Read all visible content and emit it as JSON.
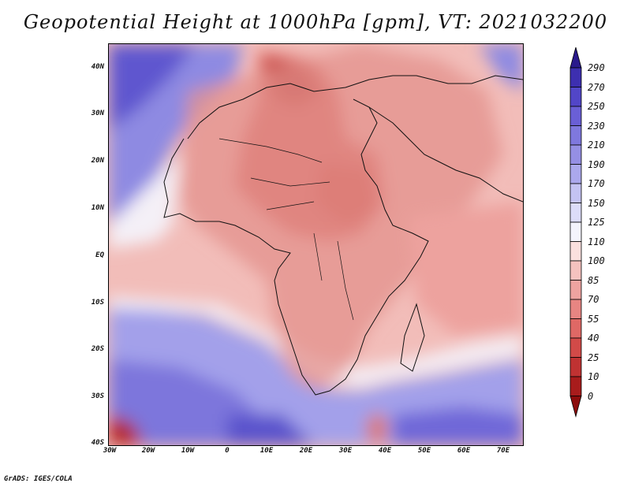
{
  "title": "Geopotential Height at 1000hPa [gpm], VT: 2021032200",
  "footer": "GrADS: IGES/COLA",
  "map": {
    "lat_labels": [
      "40N",
      "30N",
      "20N",
      "10N",
      "EQ",
      "10S",
      "20S",
      "30S",
      "40S"
    ],
    "lon_labels": [
      "30W",
      "20W",
      "10W",
      "0",
      "10E",
      "20E",
      "30E",
      "40E",
      "50E",
      "60E",
      "70E"
    ]
  },
  "colorbar": {
    "levels": [
      "290",
      "270",
      "250",
      "230",
      "210",
      "190",
      "170",
      "150",
      "125",
      "110",
      "100",
      "85",
      "70",
      "55",
      "40",
      "25",
      "10",
      "0"
    ],
    "colors": [
      "#2a1a8c",
      "#3d2fb0",
      "#5246c8",
      "#6a5fd6",
      "#7f78de",
      "#958fe4",
      "#aba8ec",
      "#c4c3f2",
      "#dcdcf8",
      "#f4f4fc",
      "#fae0de",
      "#f5c2bf",
      "#eea3a0",
      "#e78582",
      "#df6865",
      "#d24a48",
      "#c03232",
      "#a81c1c",
      "#8c0c0c"
    ]
  }
}
